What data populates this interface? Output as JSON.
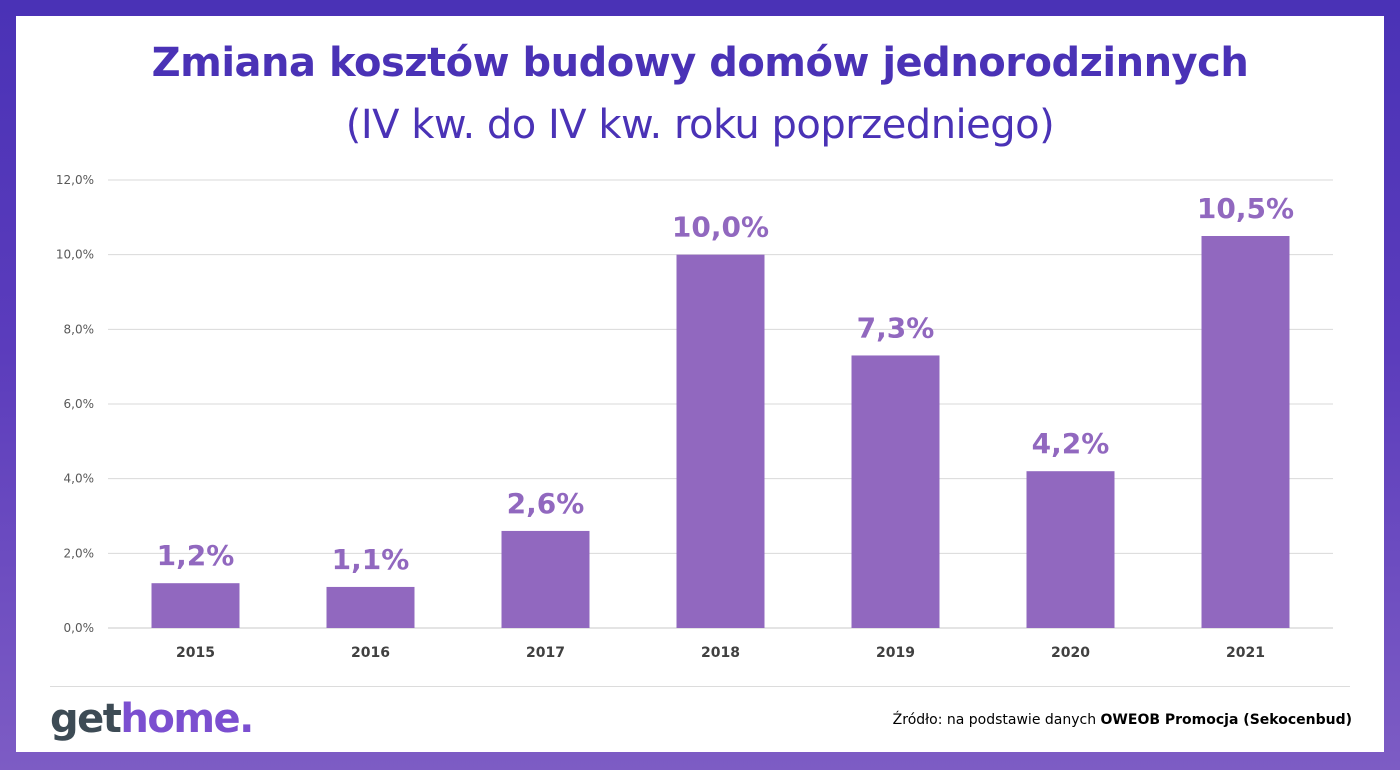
{
  "title": "Zmiana kosztów budowy domów jednorodzinnych",
  "subtitle": "(IV kw. do IV kw. roku poprzedniego)",
  "logo": {
    "part1": "get",
    "part2": "home",
    "part3": "."
  },
  "source": {
    "prefix": "Źródło: na podstawie danych ",
    "bold": "OWEOB Promocja (Sekocenbud)"
  },
  "colors": {
    "bar": "#9168bf",
    "label": "#9168bf",
    "title": "#4a32b6",
    "grid": "#d9d9d9",
    "frame": "#4a32b6"
  },
  "chart_data": {
    "type": "bar",
    "categories": [
      "2015",
      "2016",
      "2017",
      "2018",
      "2019",
      "2020",
      "2021"
    ],
    "values": [
      1.2,
      1.1,
      2.6,
      10.0,
      7.3,
      4.2,
      10.5
    ],
    "data_labels": [
      "1,2%",
      "1,1%",
      "2,6%",
      "10,0%",
      "7,3%",
      "4,2%",
      "10,5%"
    ],
    "y_ticks": [
      0,
      2,
      4,
      6,
      8,
      10,
      12
    ],
    "y_tick_labels": [
      "0,0%",
      "2,0%",
      "4,0%",
      "6,0%",
      "8,0%",
      "10,0%",
      "12,0%"
    ],
    "ylim": [
      0,
      12
    ],
    "grid": true,
    "legend": "none"
  }
}
